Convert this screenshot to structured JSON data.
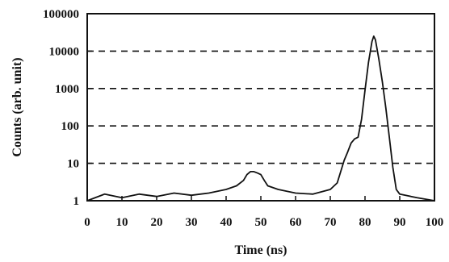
{
  "chart_data": {
    "type": "line",
    "title": "",
    "xlabel": "Time (ns)",
    "ylabel": "Counts (arb. unit)",
    "xlim": [
      0,
      100
    ],
    "ylim": [
      1,
      100000
    ],
    "y_scale": "log",
    "x_ticks": [
      0,
      10,
      20,
      30,
      40,
      50,
      60,
      70,
      80,
      90,
      100
    ],
    "x_tick_labels": [
      "0",
      "10",
      "20",
      "30",
      "40",
      "50",
      "60",
      "70",
      "80",
      "90",
      "100"
    ],
    "y_ticks": [
      1,
      10,
      100,
      1000,
      10000,
      100000
    ],
    "y_tick_labels": [
      "1",
      "10",
      "100",
      "1000",
      "10000",
      "100000"
    ],
    "grid": "horizontal dashed",
    "colors": {
      "line": "#111111",
      "grid": "#111111",
      "axis": "#111111"
    },
    "series": [
      {
        "x": [
          0,
          5,
          10,
          15,
          20,
          25,
          30,
          35,
          40,
          43,
          45,
          46,
          47,
          48,
          49,
          50,
          51,
          52,
          55,
          60,
          65,
          70,
          72,
          73,
          74,
          75,
          76,
          77,
          78,
          79,
          80,
          81,
          82,
          82.5,
          83,
          84,
          85,
          86,
          87,
          88,
          89,
          90,
          95,
          100
        ],
        "y": [
          1,
          1.5,
          1.2,
          1.5,
          1.3,
          1.6,
          1.4,
          1.6,
          2,
          2.5,
          3.5,
          5,
          6,
          6,
          5.5,
          5,
          3.5,
          2.5,
          2,
          1.6,
          1.5,
          2,
          3,
          6,
          12,
          20,
          35,
          45,
          50,
          150,
          900,
          5000,
          18000,
          25000,
          20000,
          6000,
          1500,
          300,
          50,
          8,
          2,
          1.5,
          1.2,
          1
        ]
      }
    ]
  }
}
